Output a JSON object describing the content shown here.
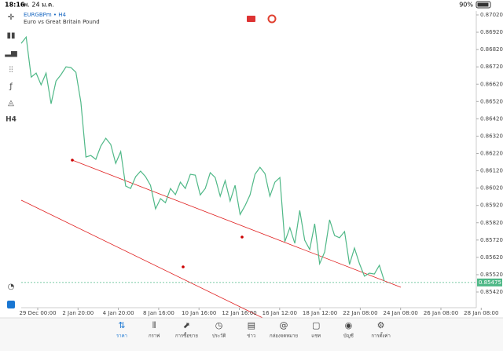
{
  "status_bar": {
    "time": "18:16",
    "date": "พ. 24 ม.ค.",
    "battery": "90%"
  },
  "toolbar": {
    "timeframe": "H4"
  },
  "chart_data": {
    "type": "line",
    "symbol": "EURGBPm • H4",
    "description": "Euro vs Great Britain Pound",
    "time_labels": [
      "29 Dec 00:00",
      "2 Jan 20:00",
      "4 Jan 20:00",
      "8 Jan 16:00",
      "10 Jan 16:00",
      "12 Jan 16:00",
      "16 Jan 12:00",
      "18 Jan 12:00",
      "22 Jan 08:00",
      "24 Jan 08:00",
      "26 Jan 08:00",
      "28 Jan 08:00"
    ],
    "values": [
      0.86856,
      0.86892,
      0.86661,
      0.86684,
      0.86616,
      0.86684,
      0.86507,
      0.86639,
      0.86675,
      0.8672,
      0.86716,
      0.86688,
      0.86516,
      0.86199,
      0.86208,
      0.86186,
      0.86263,
      0.86308,
      0.86272,
      0.86163,
      0.86231,
      0.86032,
      0.86018,
      0.86086,
      0.86118,
      0.86086,
      0.86036,
      0.859,
      0.85959,
      0.85936,
      0.86018,
      0.85982,
      0.86054,
      0.86018,
      0.861,
      0.86095,
      0.8598,
      0.86018,
      0.86109,
      0.86081,
      0.85973,
      0.86063,
      0.85945,
      0.86036,
      0.85868,
      0.85918,
      0.8598,
      0.861,
      0.8614,
      0.86104,
      0.85973,
      0.86054,
      0.86081,
      0.8571,
      0.85791,
      0.85701,
      0.85891,
      0.85719,
      0.85665,
      0.85814,
      0.85583,
      0.85651,
      0.85837,
      0.85746,
      0.85733,
      0.85769,
      0.85579,
      0.85674,
      0.85583,
      0.85511,
      0.85529,
      0.85524,
      0.85574,
      0.85483
    ],
    "color": "#4fb887",
    "ylim": [
      0.8542,
      0.8702
    ],
    "yticks": [
      {
        "value": 0.8702,
        "label": "0.87020"
      },
      {
        "value": 0.8692,
        "label": "0.86920"
      },
      {
        "value": 0.8682,
        "label": "0.86820"
      },
      {
        "value": 0.8672,
        "label": "0.86720"
      },
      {
        "value": 0.8662,
        "label": "0.86620"
      },
      {
        "value": 0.8652,
        "label": "0.86520"
      },
      {
        "value": 0.8642,
        "label": "0.86420"
      },
      {
        "value": 0.8632,
        "label": "0.86320"
      },
      {
        "value": 0.8622,
        "label": "0.86220"
      },
      {
        "value": 0.8612,
        "label": "0.86120"
      },
      {
        "value": 0.8602,
        "label": "0.86020"
      },
      {
        "value": 0.8592,
        "label": "0.85920"
      },
      {
        "value": 0.8582,
        "label": "0.85820"
      },
      {
        "value": 0.8572,
        "label": "0.85720"
      },
      {
        "value": 0.8562,
        "label": "0.85620"
      },
      {
        "value": 0.8552,
        "label": "0.85520"
      },
      {
        "value": 0.8542,
        "label": "0.85420"
      }
    ],
    "current_price": 0.85475
  },
  "tab_bar": {
    "tabs": [
      "ราคา",
      "กราฟ",
      "การซื้อขาย",
      "ประวัติ",
      "ข่าว",
      "กล่องจดหมาย",
      "แชท",
      "บัญชี",
      "การตั้งค่า"
    ]
  }
}
